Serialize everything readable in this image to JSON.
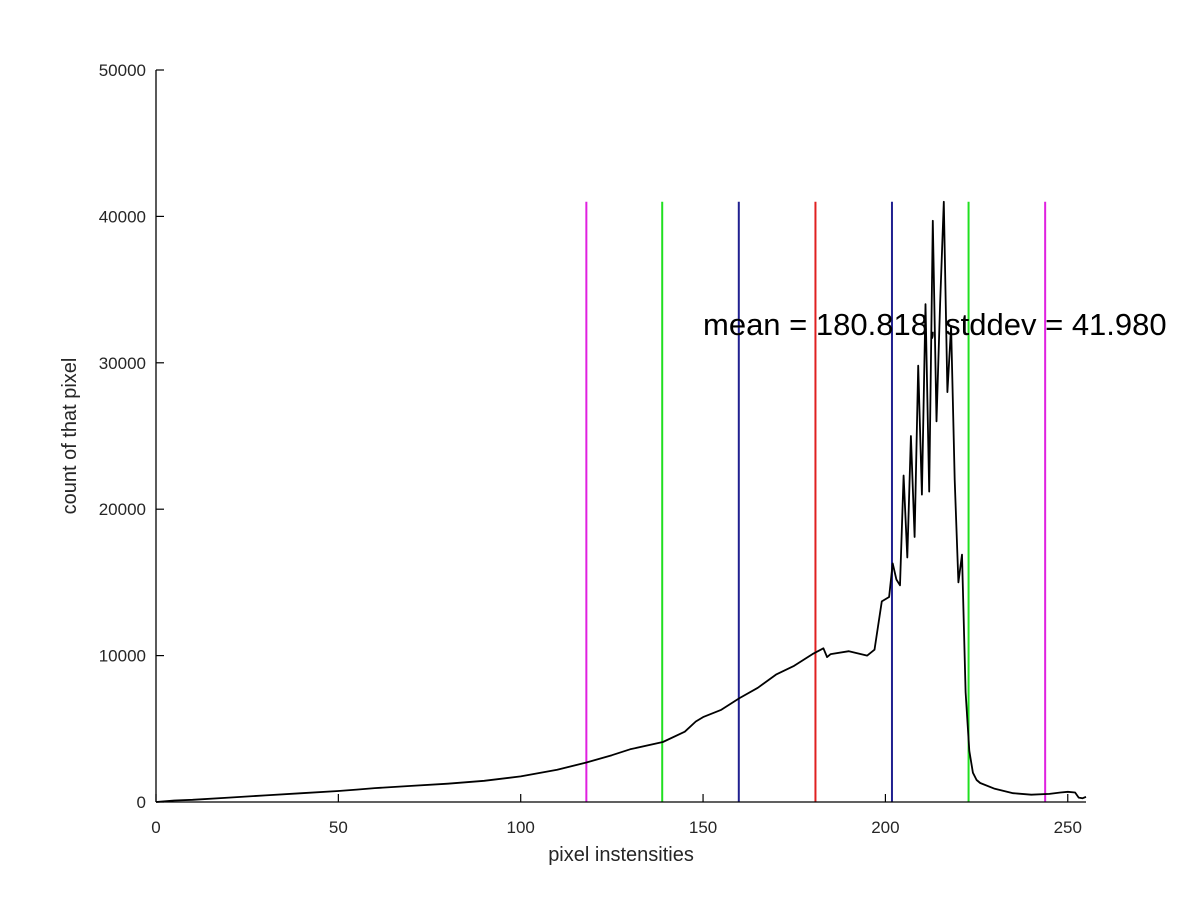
{
  "chart_data": {
    "type": "line",
    "title": "",
    "xlabel": "pixel instensities",
    "ylabel": "count of that pixel",
    "xlim": [
      0,
      255
    ],
    "ylim": [
      0,
      50000
    ],
    "x_ticks": [
      0,
      50,
      100,
      150,
      200,
      250
    ],
    "y_ticks": [
      0,
      10000,
      20000,
      30000,
      40000,
      50000
    ],
    "grid": false,
    "annotation": "mean = 180.818, stddev = 41.980",
    "mean": 180.818,
    "stddev": 41.98,
    "series": [
      {
        "color": "#000000",
        "x": [
          0,
          5,
          10,
          20,
          30,
          40,
          50,
          55,
          60,
          70,
          80,
          90,
          100,
          110,
          118,
          125,
          130,
          139,
          145,
          148,
          150,
          155,
          160,
          165,
          170,
          175,
          180,
          183,
          184,
          185,
          190,
          195,
          197,
          199,
          201,
          202,
          203,
          204,
          205,
          206,
          207,
          208,
          209,
          210,
          211,
          212,
          213,
          214,
          215,
          216,
          217,
          218,
          219,
          220,
          221,
          222,
          223,
          224,
          225,
          226,
          230,
          235,
          240,
          245,
          248,
          250,
          252,
          253,
          254,
          255
        ],
        "y": [
          0,
          100,
          150,
          300,
          450,
          600,
          750,
          850,
          950,
          1100,
          1250,
          1450,
          1750,
          2200,
          2700,
          3200,
          3600,
          4100,
          4800,
          5500,
          5800,
          6300,
          7100,
          7800,
          8700,
          9300,
          10100,
          10500,
          9900,
          10100,
          10300,
          10000,
          10400,
          13700,
          14000,
          16300,
          15200,
          14800,
          22300,
          16700,
          25000,
          18100,
          29800,
          21000,
          34000,
          21200,
          39700,
          26000,
          34000,
          41000,
          28000,
          32500,
          22000,
          15000,
          16900,
          7500,
          3500,
          2000,
          1500,
          1300,
          900,
          600,
          500,
          550,
          650,
          700,
          650,
          300,
          250,
          350
        ]
      }
    ],
    "vertical_lines": [
      {
        "value": 118.0,
        "color": "#e020e0"
      },
      {
        "value": 138.8,
        "color": "#20e020"
      },
      {
        "value": 159.8,
        "color": "#202090"
      },
      {
        "value": 180.818,
        "color": "#e02020"
      },
      {
        "value": 201.8,
        "color": "#202090"
      },
      {
        "value": 222.8,
        "color": "#20e020"
      },
      {
        "value": 243.8,
        "color": "#e020e0"
      }
    ],
    "vertical_line_top": 41000
  }
}
